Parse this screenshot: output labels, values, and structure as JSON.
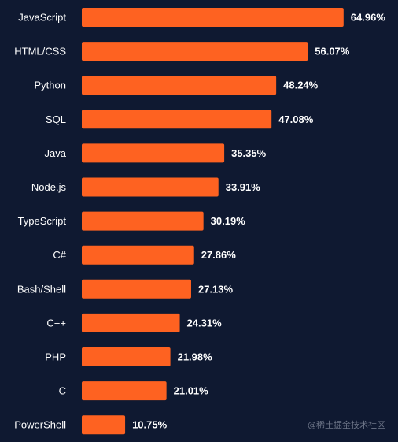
{
  "chart_data": {
    "type": "bar",
    "orientation": "horizontal",
    "categories": [
      "JavaScript",
      "HTML/CSS",
      "Python",
      "SQL",
      "Java",
      "Node.js",
      "TypeScript",
      "C#",
      "Bash/Shell",
      "C++",
      "PHP",
      "C",
      "PowerShell"
    ],
    "values": [
      64.96,
      56.07,
      48.24,
      47.08,
      35.35,
      33.91,
      30.19,
      27.86,
      27.13,
      24.31,
      21.98,
      21.01,
      10.75
    ],
    "value_labels": [
      "64.96%",
      "56.07%",
      "48.24%",
      "47.08%",
      "35.35%",
      "33.91%",
      "30.19%",
      "27.86%",
      "27.13%",
      "24.31%",
      "21.98%",
      "21.01%",
      "10.75%"
    ],
    "xlim": [
      0,
      65
    ],
    "grid": false,
    "legend": "none",
    "colors": {
      "background": "#0f1931",
      "bar": "#fe6221",
      "text": "#ffffff"
    }
  },
  "watermark": "@稀土掘金技术社区"
}
